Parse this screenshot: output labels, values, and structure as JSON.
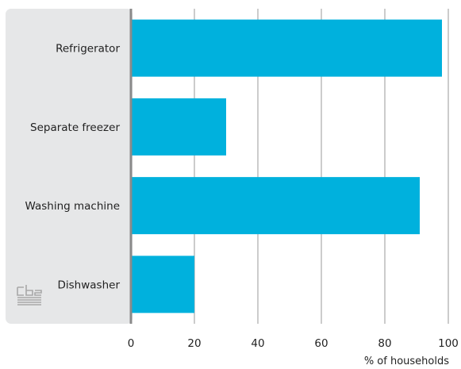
{
  "chart_data": {
    "type": "bar",
    "orientation": "horizontal",
    "categories": [
      "Refrigerator",
      "Separate freezer",
      "Washing machine",
      "Dishwasher"
    ],
    "values": [
      98,
      30,
      91,
      20
    ],
    "xlabel": "% of households",
    "ylabel": "",
    "xlim": [
      0,
      100
    ],
    "xticks": [
      "0",
      "20",
      "40",
      "60",
      "80",
      "100"
    ],
    "grid": "vertical",
    "colors": {
      "bar": "#00b1dd",
      "label_panel": "#e6e7e8",
      "grid": "#9a9a9a",
      "axis": "#8a8a8a",
      "logo": "#a8a8a8"
    },
    "logo_icon": "cbs-logo-icon"
  }
}
